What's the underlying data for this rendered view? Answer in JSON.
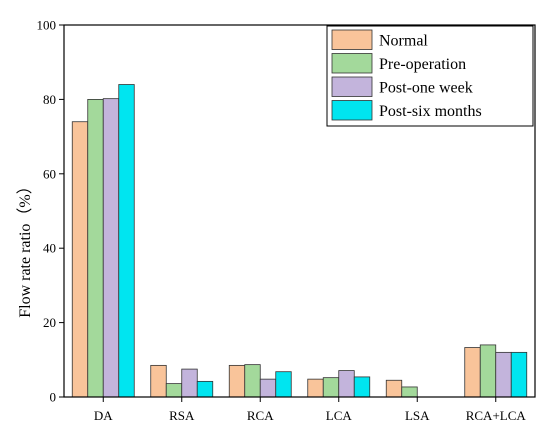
{
  "chart_data": {
    "type": "bar",
    "title": "",
    "xlabel": "",
    "ylabel": "Flow rate ratio（%）",
    "ylim": [
      0,
      100
    ],
    "yticks": [
      0,
      20,
      40,
      60,
      80,
      100
    ],
    "grid": false,
    "legend_position": "top-right",
    "categories": [
      "DA",
      "RSA",
      "RCA",
      "LCA",
      "LSA",
      "RCA+LCA"
    ],
    "series": [
      {
        "name": "Normal",
        "color": "#F9C49A",
        "values": [
          74,
          8.5,
          8.5,
          4.8,
          4.5,
          13.3
        ]
      },
      {
        "name": "Pre-operation",
        "color": "#A3D99B",
        "values": [
          80,
          3.6,
          8.7,
          5.2,
          2.7,
          14
        ]
      },
      {
        "name": "Post-one week",
        "color": "#C3B4DC",
        "values": [
          80.2,
          7.5,
          4.8,
          7.1,
          0,
          12
        ]
      },
      {
        "name": "Post-six months",
        "color": "#00E5F0",
        "values": [
          84,
          4.2,
          6.8,
          5.4,
          0,
          12
        ]
      }
    ]
  }
}
